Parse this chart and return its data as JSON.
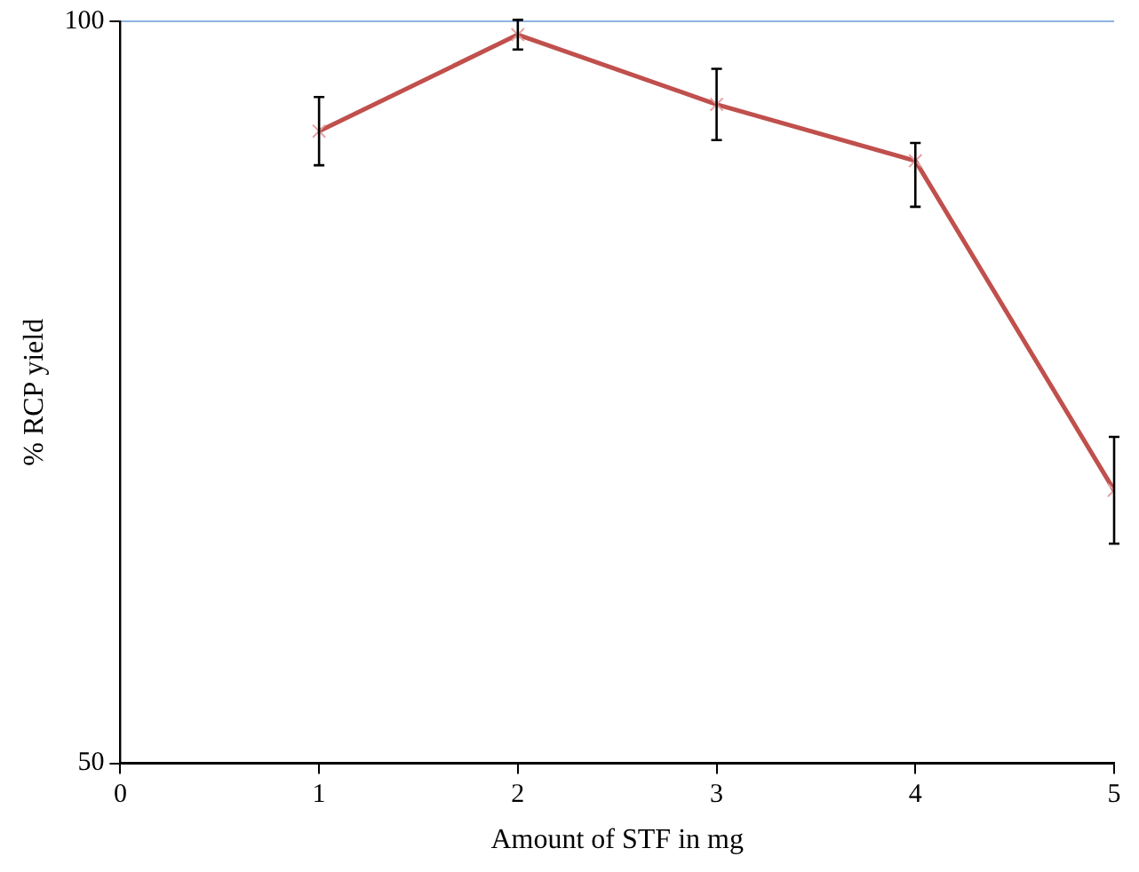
{
  "chart_data": {
    "type": "line",
    "xlabel": "Amount of STF in mg",
    "ylabel": "% RCP yield",
    "x": [
      1,
      2,
      3,
      4,
      5
    ],
    "series": [
      {
        "color": "#c0504d",
        "values": [
          92.6,
          99.1,
          94.4,
          90.6,
          68.4
        ],
        "errors": [
          2.3,
          1.0,
          2.4,
          [
            87.5,
            91.8
          ],
          3.6
        ]
      }
    ],
    "xlim": [
      0,
      5
    ],
    "xticks": [
      0,
      1,
      2,
      3,
      4,
      5
    ],
    "ylim": [
      50,
      100
    ],
    "yticks": [
      50,
      100
    ],
    "grid": "y",
    "legend": false,
    "marker": "cross",
    "line_style": "solid"
  }
}
